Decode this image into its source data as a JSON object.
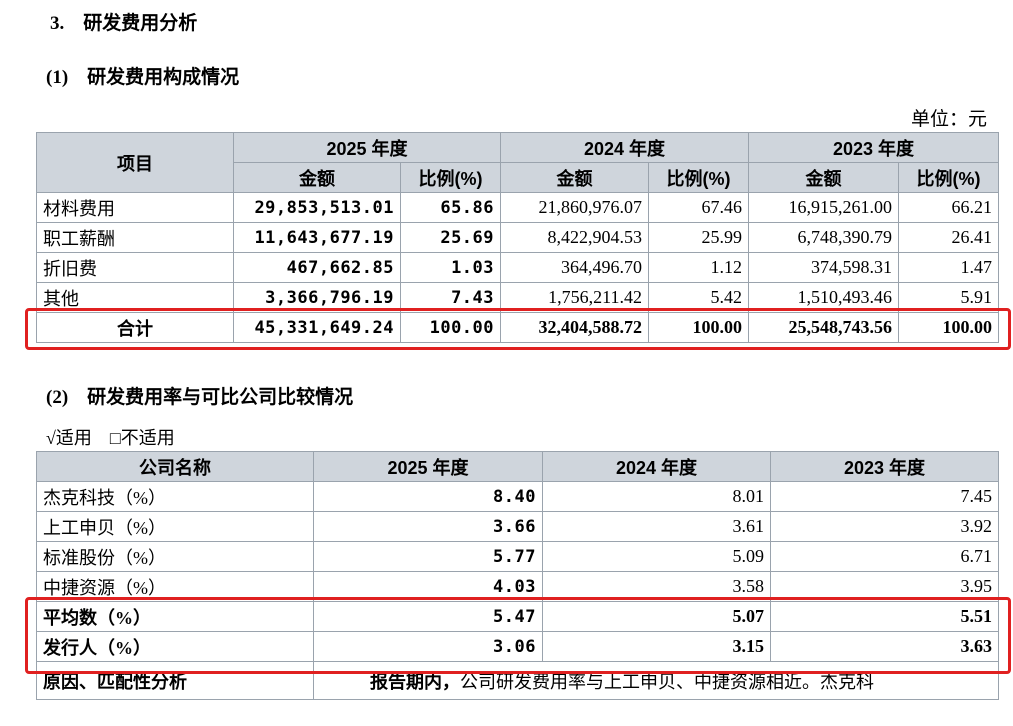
{
  "headings": {
    "section": "3.　研发费用分析",
    "sub1": "(1)　研发费用构成情况",
    "sub2": "(2)　研发费用率与可比公司比较情况"
  },
  "unit": "单位：元",
  "applicability": "√适用　□不适用",
  "table1": {
    "item_header": "项目",
    "years": [
      "2025 年度",
      "2024 年度",
      "2023 年度"
    ],
    "amount_header": "金额",
    "ratio_header": "比例(%)",
    "rows": [
      {
        "name": "材料费用",
        "v": [
          "29,853,513.01",
          "65.86",
          "21,860,976.07",
          "67.46",
          "16,915,261.00",
          "66.21"
        ]
      },
      {
        "name": "职工薪酬",
        "v": [
          "11,643,677.19",
          "25.69",
          "8,422,904.53",
          "25.99",
          "6,748,390.79",
          "26.41"
        ]
      },
      {
        "name": "折旧费",
        "v": [
          "467,662.85",
          "1.03",
          "364,496.70",
          "1.12",
          "374,598.31",
          "1.47"
        ]
      },
      {
        "name": "其他",
        "v": [
          "3,366,796.19",
          "7.43",
          "1,756,211.42",
          "5.42",
          "1,510,493.46",
          "5.91"
        ]
      }
    ],
    "total": {
      "name": "合计",
      "v": [
        "45,331,649.24",
        "100.00",
        "32,404,588.72",
        "100.00",
        "25,548,743.56",
        "100.00"
      ]
    }
  },
  "table2": {
    "company_header": "公司名称",
    "years": [
      "2025 年度",
      "2024 年度",
      "2023 年度"
    ],
    "rows": [
      {
        "name": "杰克科技（%）",
        "v": [
          "8.40",
          "8.01",
          "7.45"
        ]
      },
      {
        "name": "上工申贝（%）",
        "v": [
          "3.66",
          "3.61",
          "3.92"
        ]
      },
      {
        "name": "标准股份（%）",
        "v": [
          "5.77",
          "5.09",
          "6.71"
        ]
      },
      {
        "name": "中捷资源（%）",
        "v": [
          "4.03",
          "3.58",
          "3.95"
        ]
      },
      {
        "name": "平均数（%）",
        "v": [
          "5.47",
          "5.07",
          "5.51"
        ]
      },
      {
        "name": "发行人（%）",
        "v": [
          "3.06",
          "3.15",
          "3.63"
        ]
      }
    ],
    "reason_label": "原因、匹配性分析",
    "reason_bold": "报告期内，",
    "reason_text": "公司研发费用率与上工申贝、中捷资源相近。杰克科"
  }
}
